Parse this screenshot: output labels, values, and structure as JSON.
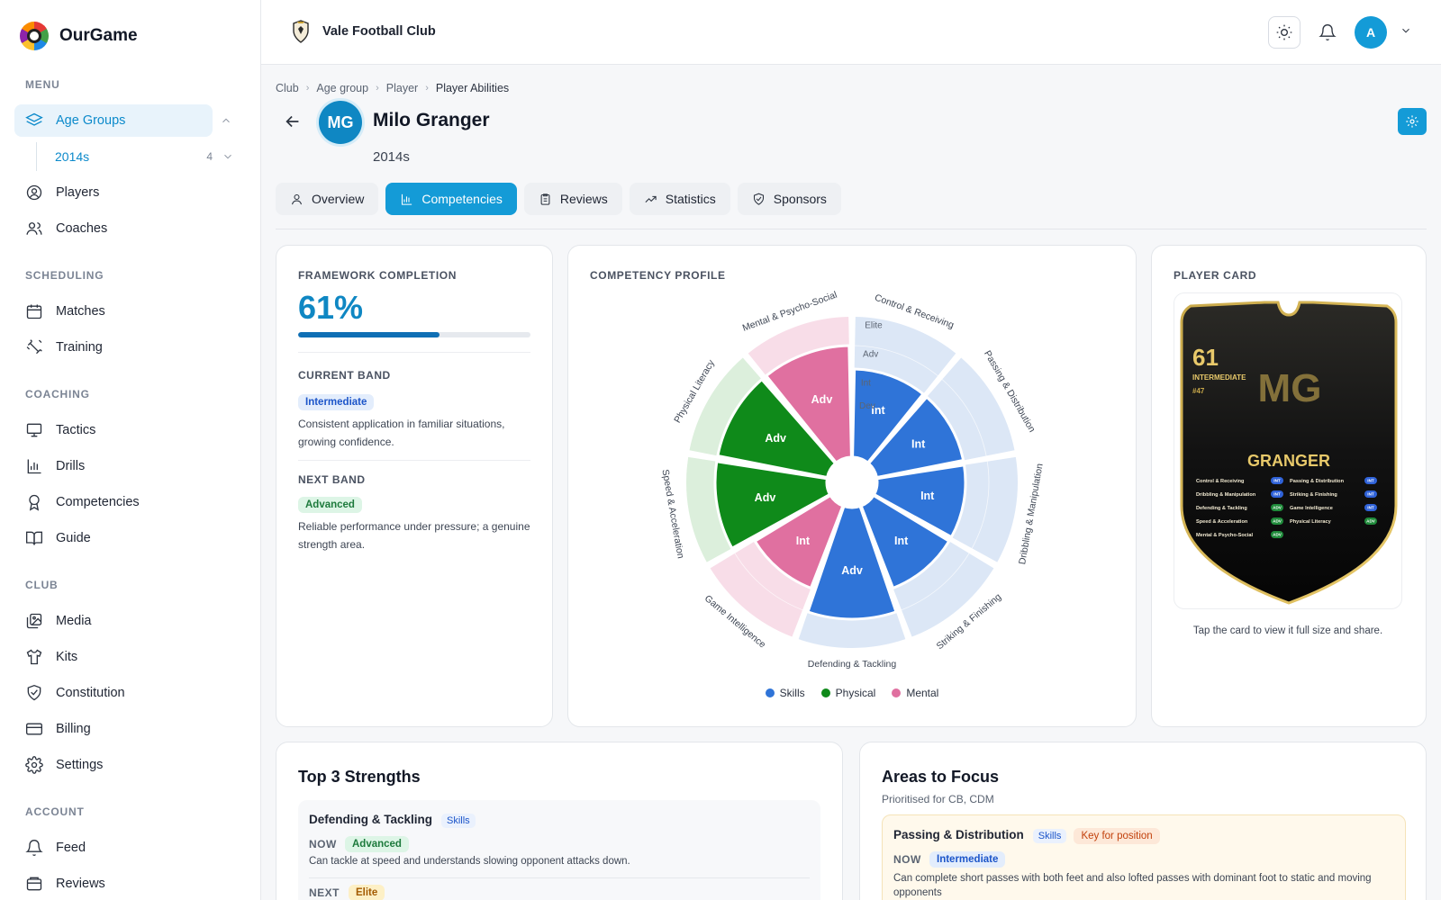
{
  "app": {
    "name": "OurGame"
  },
  "sidebar": {
    "sections": {
      "menu": "MENU",
      "scheduling": "SCHEDULING",
      "coaching": "COACHING",
      "club": "CLUB",
      "account": "ACCOUNT"
    },
    "age_groups": "Age Groups",
    "sub_item": {
      "label": "2014s",
      "count": "4"
    },
    "players": "Players",
    "coaches": "Coaches",
    "matches": "Matches",
    "training": "Training",
    "tactics": "Tactics",
    "drills": "Drills",
    "competencies": "Competencies",
    "guide": "Guide",
    "media": "Media",
    "kits": "Kits",
    "constitution": "Constitution",
    "billing": "Billing",
    "settings": "Settings",
    "feed": "Feed",
    "reviews": "Reviews"
  },
  "topbar": {
    "club_name": "Vale Football Club",
    "user_initial": "A"
  },
  "breadcrumbs": [
    "Club",
    "Age group",
    "Player",
    "Player Abilities"
  ],
  "player": {
    "initials": "MG",
    "name": "Milo Granger",
    "group": "2014s"
  },
  "tabs": {
    "overview": "Overview",
    "competencies": "Competencies",
    "reviews": "Reviews",
    "statistics": "Statistics",
    "sponsors": "Sponsors"
  },
  "framework": {
    "title": "FRAMEWORK COMPLETION",
    "percent_label": "61%",
    "progress": 0.61,
    "current_band_title": "CURRENT BAND",
    "current_band": "Intermediate",
    "current_desc": "Consistent application in familiar situations, growing confidence.",
    "next_band_title": "NEXT BAND",
    "next_band": "Advanced",
    "next_desc": "Reliable performance under pressure; a genuine strength area."
  },
  "profile": {
    "title": "COMPETENCY PROFILE",
    "ring_labels": [
      "Elite",
      "Adv",
      "Int",
      "Dev"
    ],
    "legend": [
      {
        "name": "Skills",
        "color": "#2f74d8"
      },
      {
        "name": "Physical",
        "color": "#0f8a1a"
      },
      {
        "name": "Mental",
        "color": "#e070a0"
      }
    ]
  },
  "chart_data": {
    "type": "polar-area",
    "levels": [
      "Dev",
      "Int",
      "Adv",
      "Elite"
    ],
    "categories": [
      "Control & Receiving",
      "Passing & Distribution",
      "Dribbling & Manipulation",
      "Striking & Finishing",
      "Defending & Tackling",
      "Game Intelligence",
      "Speed & Acceleration",
      "Physical Literacy",
      "Mental & Psycho-Social"
    ],
    "groups": [
      "Skills",
      "Skills",
      "Skills",
      "Skills",
      "Skills",
      "Mental",
      "Physical",
      "Physical",
      "Mental"
    ],
    "values": [
      "Int",
      "Int",
      "Int",
      "Int",
      "Adv",
      "Int",
      "Adv",
      "Adv",
      "Adv"
    ],
    "value_labels": [
      "Int",
      "Int",
      "Int",
      "Int",
      "Adv",
      "Int",
      "Adv",
      "Adv",
      "Adv"
    ]
  },
  "player_card": {
    "title": "PLAYER CARD",
    "rating": "61",
    "band": "INTERMEDIATE",
    "number": "#47",
    "initials": "MG",
    "surname": "GRANGER",
    "rows": [
      {
        "name": "Control & Receiving",
        "badge": "INT"
      },
      {
        "name": "Passing & Distribution",
        "badge": "INT"
      },
      {
        "name": "Dribbling & Manipulation",
        "badge": "INT"
      },
      {
        "name": "Striking & Finishing",
        "badge": "INT"
      },
      {
        "name": "Defending & Tackling",
        "badge": "ADV"
      },
      {
        "name": "Game Intelligence",
        "badge": "INT"
      },
      {
        "name": "Speed & Acceleration",
        "badge": "ADV"
      },
      {
        "name": "Physical Literacy",
        "badge": "ADV"
      },
      {
        "name": "Mental & Psycho-Social",
        "badge": "ADV"
      }
    ],
    "caption": "Tap the card to view it full size and share."
  },
  "strengths": {
    "title": "Top 3 Strengths",
    "item_title": "Defending & Tackling",
    "item_tag": "Skills",
    "now_label": "NOW",
    "now_band": "Advanced",
    "now_desc": "Can tackle at speed and understands slowing opponent attacks down.",
    "next_label": "NEXT",
    "next_band": "Elite"
  },
  "focus": {
    "title": "Areas to Focus",
    "subtitle": "Prioritised for CB, CDM",
    "item_title": "Passing & Distribution",
    "item_tag": "Skills",
    "key_tag": "Key for position",
    "now_label": "NOW",
    "now_band": "Intermediate",
    "now_desc": "Can complete short passes with both feet and also lofted passes with dominant foot to static and moving opponents"
  }
}
